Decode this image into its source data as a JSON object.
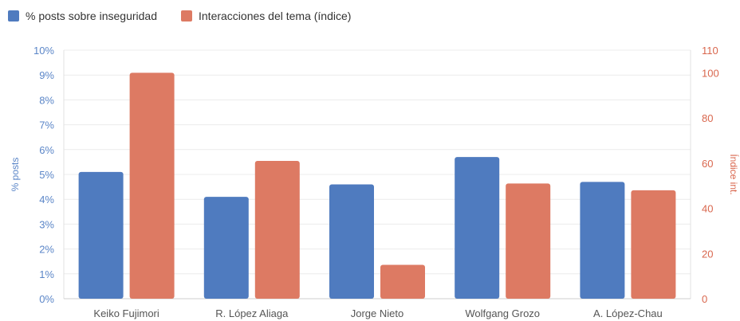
{
  "chart_data": {
    "type": "bar",
    "categories": [
      "Keiko Fujimori",
      "R. López Aliaga",
      "Jorge Nieto",
      "Wolfgang Grozo",
      "A. López-Chau"
    ],
    "series": [
      {
        "name": "% posts sobre inseguridad",
        "axis": "left",
        "color": "#4f7bbf",
        "values": [
          5.1,
          4.1,
          4.6,
          5.7,
          4.7
        ]
      },
      {
        "name": "Interacciones del tema (índice)",
        "axis": "right",
        "color": "#dd7a63",
        "values": [
          100,
          61,
          15,
          51,
          48
        ]
      }
    ],
    "y_left": {
      "label": "% posts",
      "min": 0,
      "max": 10,
      "ticks": [
        "0%",
        "1%",
        "2%",
        "3%",
        "4%",
        "5%",
        "6%",
        "7%",
        "8%",
        "9%",
        "10%"
      ],
      "color": "#5b86c8"
    },
    "y_right": {
      "label": "Índice int.",
      "min": 0,
      "max": 110,
      "ticks": [
        "0",
        "20",
        "40",
        "60",
        "80",
        "100",
        "110"
      ],
      "tick_values": [
        0,
        20,
        40,
        60,
        80,
        100,
        110
      ],
      "color": "#d9674e"
    },
    "grid": true,
    "legend_position": "top-left"
  }
}
